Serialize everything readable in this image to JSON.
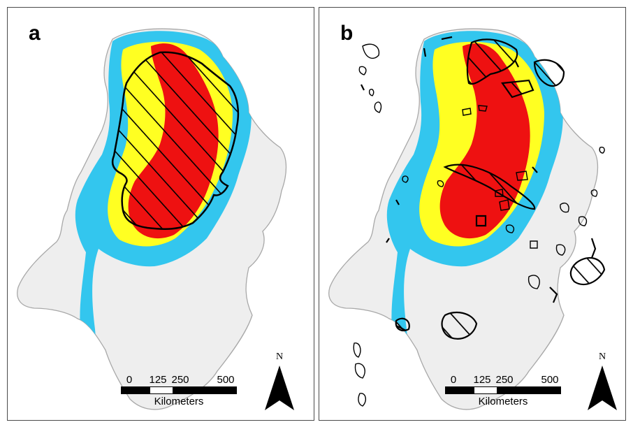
{
  "panels": [
    {
      "id": "a",
      "label": "a"
    },
    {
      "id": "b",
      "label": "b"
    }
  ],
  "scale_bar": {
    "ticks": [
      "0",
      "125",
      "250",
      "500"
    ],
    "unit": "Kilometers"
  },
  "north_arrow": {
    "label": "N"
  },
  "colors": {
    "land": "#eeeeee",
    "land_outline": "#a8a8a8",
    "low_class": "#33c6ee",
    "medium_class": "#ffff22",
    "high_class": "#ee1111",
    "hatch_outline": "#000000"
  }
}
